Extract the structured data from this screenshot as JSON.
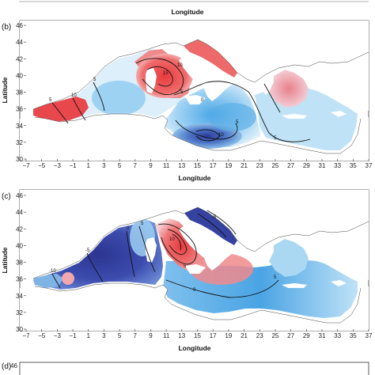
{
  "figure": {
    "top_fragment": {
      "xlabel": "Longitude"
    },
    "panels": [
      {
        "id": "b",
        "label": "(b)",
        "xlabel": "Longitude",
        "ylabel": "Latitude",
        "xticks": [
          "−7",
          "−5",
          "−3",
          "−1",
          "1",
          "3",
          "5",
          "7",
          "9",
          "11",
          "13",
          "15",
          "17",
          "19",
          "21",
          "23",
          "25",
          "27",
          "29",
          "31",
          "33",
          "35",
          "37"
        ],
        "yticks": [
          "30",
          "32",
          "34",
          "36",
          "38",
          "40",
          "42",
          "44",
          "46"
        ],
        "contour_labels": [
          "5",
          "10",
          "15",
          "10",
          "5",
          "5",
          "0",
          "5",
          "10",
          "5"
        ]
      },
      {
        "id": "c",
        "label": "(c)",
        "xlabel": "Longitude",
        "ylabel": "Latitude",
        "xticks": [
          "−7",
          "−5",
          "−3",
          "−1",
          "1",
          "3",
          "5",
          "7",
          "9",
          "11",
          "13",
          "15",
          "17",
          "19",
          "21",
          "23",
          "25",
          "27",
          "29",
          "31",
          "33",
          "35",
          "37"
        ],
        "yticks": [
          "30",
          "32",
          "34",
          "36",
          "38",
          "40",
          "42",
          "44",
          "46"
        ],
        "contour_labels": [
          "-10",
          "-5",
          "0",
          "5",
          "10",
          "5",
          "0",
          "-5",
          "5"
        ]
      },
      {
        "id": "d",
        "label": "(d)",
        "yticks": [
          "46"
        ]
      }
    ]
  },
  "chart_data": {
    "type": "heatmap",
    "colors": {
      "positive": "#e8454a",
      "negative": "#2f3d9e",
      "neutral": "#e9f4fb",
      "mid_blue": "#5aaee6"
    }
  }
}
